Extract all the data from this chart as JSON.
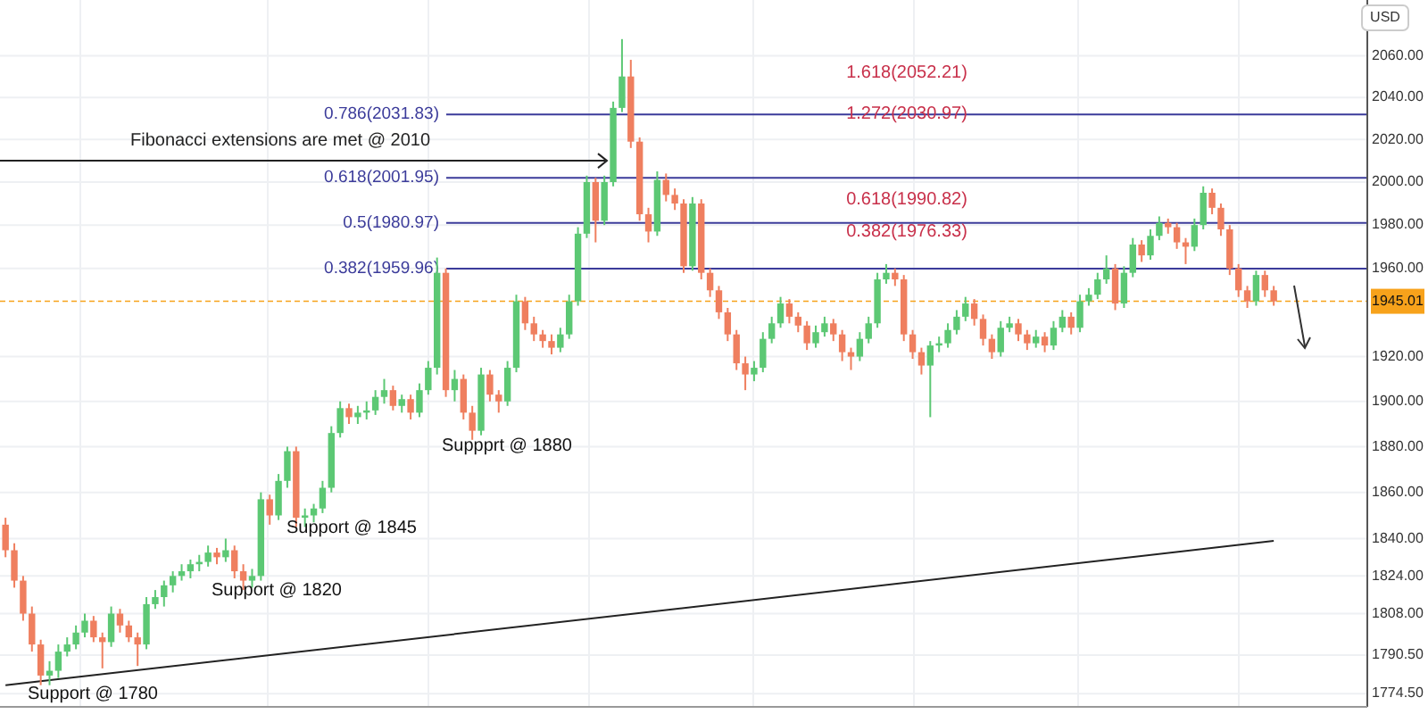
{
  "chart_data": {
    "type": "candlestick",
    "log": true,
    "grid": true,
    "tick_labels": "y",
    "categories": [
      null,
      null,
      null,
      null,
      null,
      null,
      null,
      null,
      null,
      null,
      null,
      null,
      null,
      null,
      null,
      null,
      null,
      null,
      null,
      null,
      null,
      null,
      null,
      null,
      null,
      null,
      null,
      null,
      null,
      null,
      null,
      null,
      null,
      null,
      null,
      null,
      null,
      null,
      null,
      null,
      null,
      null,
      null,
      null,
      null,
      null,
      null,
      null,
      null,
      null,
      null,
      null,
      null,
      null,
      null,
      null,
      null,
      null,
      null,
      null,
      null,
      null,
      null,
      null,
      null,
      null,
      null,
      null,
      null,
      null,
      null,
      null,
      null,
      null,
      null,
      null,
      null,
      null,
      null,
      null,
      null,
      null,
      null,
      null,
      null,
      null,
      null,
      null,
      null,
      null,
      null,
      null,
      null,
      null,
      null,
      null,
      null,
      null,
      null,
      null,
      null,
      null,
      null,
      null,
      null,
      null,
      null,
      null,
      null,
      null,
      null,
      null,
      null,
      null,
      null,
      null,
      null,
      null,
      null,
      null,
      null,
      null,
      null,
      null,
      null,
      null,
      null,
      null,
      null,
      null,
      null,
      null,
      null,
      null,
      null,
      null,
      null,
      null,
      null,
      null,
      null,
      null,
      null,
      null,
      null,
      null,
      null,
      null,
      null,
      null,
      null,
      null,
      null,
      null,
      null
    ],
    "series": [
      {
        "type": "candlestick",
        "ohlc": [
          [
            1846,
            1849,
            1832,
            1835
          ],
          [
            1835,
            1838,
            1819,
            1822
          ],
          [
            1822,
            1824,
            1805,
            1808
          ],
          [
            1808,
            1811,
            1792,
            1795
          ],
          [
            1795,
            1797,
            1778,
            1782
          ],
          [
            1782,
            1788,
            1778,
            1784
          ],
          [
            1784,
            1795,
            1781,
            1792
          ],
          [
            1792,
            1798,
            1790,
            1795
          ],
          [
            1795,
            1803,
            1793,
            1800
          ],
          [
            1800,
            1808,
            1798,
            1805
          ],
          [
            1805,
            1807,
            1796,
            1798
          ],
          [
            1798,
            1800,
            1785,
            1796
          ],
          [
            1796,
            1811,
            1794,
            1808
          ],
          [
            1808,
            1810,
            1800,
            1803
          ],
          [
            1803,
            1805,
            1796,
            1798
          ],
          [
            1798,
            1800,
            1786,
            1795
          ],
          [
            1795,
            1815,
            1793,
            1812
          ],
          [
            1812,
            1818,
            1810,
            1815
          ],
          [
            1815,
            1822,
            1811,
            1820
          ],
          [
            1820,
            1826,
            1817,
            1824
          ],
          [
            1824,
            1829,
            1822,
            1826
          ],
          [
            1826,
            1831,
            1823,
            1829
          ],
          [
            1829,
            1833,
            1826,
            1830
          ],
          [
            1830,
            1837,
            1828,
            1834
          ],
          [
            1834,
            1836,
            1829,
            1832
          ],
          [
            1832,
            1840,
            1830,
            1835
          ],
          [
            1835,
            1837,
            1823,
            1826
          ],
          [
            1826,
            1829,
            1818,
            1822
          ],
          [
            1822,
            1827,
            1819,
            1824
          ],
          [
            1824,
            1860,
            1822,
            1857
          ],
          [
            1857,
            1859,
            1846,
            1850
          ],
          [
            1850,
            1868,
            1848,
            1865
          ],
          [
            1865,
            1880,
            1862,
            1878
          ],
          [
            1878,
            1880,
            1845,
            1849
          ],
          [
            1849,
            1853,
            1845,
            1850
          ],
          [
            1850,
            1855,
            1847,
            1853
          ],
          [
            1853,
            1865,
            1851,
            1862
          ],
          [
            1862,
            1889,
            1860,
            1886
          ],
          [
            1886,
            1900,
            1884,
            1897
          ],
          [
            1897,
            1899,
            1890,
            1893
          ],
          [
            1893,
            1898,
            1890,
            1895
          ],
          [
            1895,
            1900,
            1892,
            1896
          ],
          [
            1896,
            1905,
            1894,
            1902
          ],
          [
            1902,
            1910,
            1899,
            1905
          ],
          [
            1905,
            1907,
            1896,
            1898
          ],
          [
            1898,
            1903,
            1895,
            1901
          ],
          [
            1901,
            1903,
            1892,
            1895
          ],
          [
            1895,
            1908,
            1893,
            1905
          ],
          [
            1905,
            1918,
            1903,
            1915
          ],
          [
            1915,
            1965,
            1912,
            1958
          ],
          [
            1958,
            1960,
            1902,
            1905
          ],
          [
            1905,
            1914,
            1900,
            1910
          ],
          [
            1910,
            1912,
            1892,
            1895
          ],
          [
            1895,
            1898,
            1883,
            1887
          ],
          [
            1887,
            1915,
            1885,
            1912
          ],
          [
            1912,
            1914,
            1900,
            1903
          ],
          [
            1903,
            1905,
            1895,
            1900
          ],
          [
            1900,
            1918,
            1898,
            1915
          ],
          [
            1915,
            1948,
            1913,
            1945
          ],
          [
            1945,
            1947,
            1932,
            1935
          ],
          [
            1935,
            1938,
            1927,
            1930
          ],
          [
            1930,
            1932,
            1924,
            1927
          ],
          [
            1927,
            1930,
            1921,
            1924
          ],
          [
            1924,
            1933,
            1922,
            1930
          ],
          [
            1930,
            1948,
            1928,
            1945
          ],
          [
            1945,
            1979,
            1943,
            1976
          ],
          [
            1976,
            2003,
            1974,
            2000
          ],
          [
            2000,
            2002,
            1972,
            1982
          ],
          [
            1982,
            2003,
            1980,
            2000
          ],
          [
            2000,
            2038,
            1998,
            2035
          ],
          [
            2035,
            2068,
            2033,
            2050
          ],
          [
            2050,
            2058,
            2016,
            2019
          ],
          [
            2019,
            2021,
            1982,
            1985
          ],
          [
            1985,
            1988,
            1972,
            1977
          ],
          [
            1977,
            2005,
            1975,
            2001
          ],
          [
            2001,
            2004,
            1991,
            1994
          ],
          [
            1994,
            1997,
            1987,
            1990
          ],
          [
            1990,
            1992,
            1958,
            1961
          ],
          [
            1961,
            1993,
            1959,
            1990
          ],
          [
            1990,
            1992,
            1955,
            1958
          ],
          [
            1958,
            1960,
            1947,
            1950
          ],
          [
            1950,
            1952,
            1937,
            1940
          ],
          [
            1940,
            1942,
            1927,
            1930
          ],
          [
            1930,
            1932,
            1914,
            1917
          ],
          [
            1917,
            1920,
            1905,
            1912
          ],
          [
            1912,
            1918,
            1909,
            1915
          ],
          [
            1915,
            1931,
            1913,
            1928
          ],
          [
            1928,
            1938,
            1926,
            1935
          ],
          [
            1935,
            1947,
            1933,
            1944
          ],
          [
            1944,
            1946,
            1935,
            1938
          ],
          [
            1938,
            1940,
            1931,
            1934
          ],
          [
            1934,
            1936,
            1923,
            1926
          ],
          [
            1926,
            1934,
            1924,
            1931
          ],
          [
            1931,
            1938,
            1929,
            1935
          ],
          [
            1935,
            1937,
            1927,
            1930
          ],
          [
            1930,
            1932,
            1918,
            1922
          ],
          [
            1922,
            1924,
            1914,
            1920
          ],
          [
            1920,
            1931,
            1918,
            1928
          ],
          [
            1928,
            1938,
            1926,
            1935
          ],
          [
            1935,
            1958,
            1933,
            1955
          ],
          [
            1955,
            1962,
            1953,
            1958
          ],
          [
            1958,
            1960,
            1952,
            1955
          ],
          [
            1955,
            1957,
            1927,
            1930
          ],
          [
            1930,
            1932,
            1919,
            1922
          ],
          [
            1922,
            1924,
            1912,
            1916
          ],
          [
            1916,
            1927,
            1893,
            1925
          ],
          [
            1925,
            1929,
            1922,
            1926
          ],
          [
            1926,
            1935,
            1924,
            1932
          ],
          [
            1932,
            1941,
            1930,
            1938
          ],
          [
            1938,
            1947,
            1936,
            1944
          ],
          [
            1944,
            1946,
            1934,
            1937
          ],
          [
            1937,
            1939,
            1925,
            1928
          ],
          [
            1928,
            1930,
            1919,
            1922
          ],
          [
            1922,
            1936,
            1920,
            1933
          ],
          [
            1933,
            1938,
            1931,
            1935
          ],
          [
            1935,
            1937,
            1927,
            1930
          ],
          [
            1930,
            1932,
            1923,
            1926
          ],
          [
            1926,
            1932,
            1924,
            1929
          ],
          [
            1929,
            1931,
            1922,
            1925
          ],
          [
            1925,
            1936,
            1923,
            1933
          ],
          [
            1933,
            1941,
            1931,
            1938
          ],
          [
            1938,
            1940,
            1930,
            1933
          ],
          [
            1933,
            1948,
            1931,
            1945
          ],
          [
            1945,
            1951,
            1943,
            1948
          ],
          [
            1948,
            1958,
            1946,
            1955
          ],
          [
            1955,
            1966,
            1953,
            1960
          ],
          [
            1960,
            1962,
            1941,
            1944
          ],
          [
            1944,
            1961,
            1942,
            1958
          ],
          [
            1958,
            1974,
            1956,
            1971
          ],
          [
            1971,
            1973,
            1963,
            1966
          ],
          [
            1966,
            1978,
            1964,
            1975
          ],
          [
            1975,
            1984,
            1973,
            1981
          ],
          [
            1981,
            1983,
            1976,
            1979
          ],
          [
            1979,
            1981,
            1969,
            1972
          ],
          [
            1972,
            1974,
            1962,
            1970
          ],
          [
            1970,
            1983,
            1968,
            1980
          ],
          [
            1980,
            1998,
            1978,
            1995
          ],
          [
            1995,
            1997,
            1985,
            1988
          ],
          [
            1988,
            1990,
            1975,
            1978
          ],
          [
            1978,
            1980,
            1957,
            1960
          ],
          [
            1960,
            1962,
            1947,
            1950
          ],
          [
            1950,
            1952,
            1942,
            1945
          ],
          [
            1945,
            1959,
            1943,
            1957
          ],
          [
            1957,
            1959,
            1947,
            1950
          ],
          [
            1950,
            1952,
            1943,
            1945
          ],
          null,
          null,
          null,
          null,
          null,
          null,
          null,
          null,
          null,
          null
        ]
      },
      {
        "type": "line",
        "color": "#222222",
        "values": [
          1778,
          null,
          null,
          null,
          null,
          null,
          null,
          null,
          null,
          null,
          null,
          null,
          null,
          null,
          null,
          null,
          null,
          null,
          null,
          null,
          null,
          null,
          null,
          null,
          null,
          null,
          null,
          null,
          null,
          null,
          null,
          null,
          null,
          null,
          null,
          null,
          null,
          null,
          null,
          null,
          null,
          null,
          null,
          null,
          null,
          null,
          null,
          null,
          null,
          null,
          null,
          null,
          null,
          null,
          null,
          null,
          null,
          null,
          null,
          null,
          null,
          null,
          null,
          null,
          null,
          null,
          null,
          null,
          null,
          null,
          null,
          null,
          null,
          null,
          null,
          null,
          null,
          null,
          null,
          null,
          null,
          null,
          null,
          null,
          null,
          null,
          null,
          null,
          null,
          null,
          null,
          null,
          null,
          null,
          null,
          null,
          null,
          null,
          null,
          null,
          null,
          null,
          null,
          null,
          null,
          null,
          null,
          null,
          null,
          null,
          null,
          null,
          null,
          null,
          null,
          null,
          null,
          null,
          null,
          null,
          null,
          null,
          null,
          null,
          null,
          null,
          null,
          null,
          null,
          null,
          null,
          null,
          null,
          null,
          null,
          null,
          null,
          null,
          null,
          null,
          null,
          null,
          null,
          null,
          1839,
          null,
          null,
          null,
          null,
          null,
          null,
          null,
          null,
          null,
          null
        ]
      }
    ],
    "ylim": [
      1769,
      2087
    ],
    "yticks": [
      {
        "value": 1774.5,
        "label": "1774.50"
      },
      {
        "value": 1790.5,
        "label": "1790.50"
      },
      {
        "value": 1808,
        "label": "1808.00"
      },
      {
        "value": 1824,
        "label": "1824.00"
      },
      {
        "value": 1840,
        "label": "1840.00"
      },
      {
        "value": 1860,
        "label": "1860.00"
      },
      {
        "value": 1880,
        "label": "1880.00"
      },
      {
        "value": 1900,
        "label": "1900.00"
      },
      {
        "value": 1920,
        "label": "1920.00"
      },
      {
        "value": 1960,
        "label": "1960.00"
      },
      {
        "value": 1980,
        "label": "1980.00"
      },
      {
        "value": 2000,
        "label": "2000.00"
      },
      {
        "value": 2020,
        "label": "2020.00"
      },
      {
        "value": 2040,
        "label": "2040.00"
      },
      {
        "value": 2060,
        "label": "2060.00"
      }
    ],
    "ref_lines": [
      {
        "axis": "y",
        "value": 2031.83,
        "label": "0.786(2031.83)",
        "color": "#3b3b9a"
      },
      {
        "axis": "y",
        "value": 2001.95,
        "label": "0.618(2001.95)",
        "color": "#3b3b9a"
      },
      {
        "axis": "y",
        "value": 1980.97,
        "label": "0.5(1980.97)",
        "color": "#3b3b9a"
      },
      {
        "axis": "y",
        "value": 1959.96,
        "label": "0.382(1959.96)",
        "color": "#3b3b9a"
      },
      {
        "axis": "y",
        "value": 1945.01,
        "label": "1945.01",
        "color": "#f7a21b",
        "line_style": "dashed"
      },
      {
        "axis": "y",
        "value": 2010,
        "label": "Fibonacci extensions are met @ 2010",
        "color": "#222222"
      }
    ],
    "annotations": [
      "Support @ 1780",
      "Support @ 1820",
      "Support @ 1845",
      "Suppprt @ 1880",
      "1.618(2052.21)",
      "1.272(2030.97)",
      "0.618(1990.82)",
      "0.382(1976.33)",
      "USD"
    ]
  }
}
